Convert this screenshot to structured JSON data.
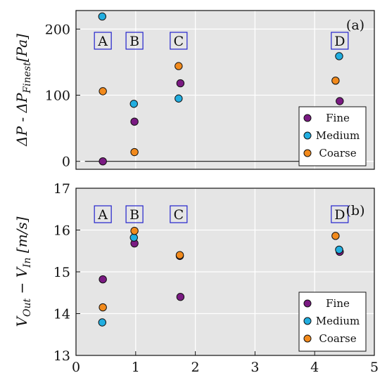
{
  "chart_data": [
    {
      "type": "scatter",
      "panel_label": "(a)",
      "ylabel": "ΔP - ΔP_Finest [Pa]",
      "ylabel_parts": {
        "main": "ΔP - ΔP",
        "sub": "Finest",
        "unit": "[Pa]"
      },
      "xlim": [
        0,
        5
      ],
      "ylim": [
        -12,
        228
      ],
      "yticks": [
        0,
        100,
        200
      ],
      "grid": true,
      "legend_position": "bottom-right",
      "reference_line": {
        "y": 0,
        "x_from": 0.15,
        "x_to": 4.85
      },
      "annotations": [
        {
          "text": "A",
          "x": 0.45
        },
        {
          "text": "B",
          "x": 0.98
        },
        {
          "text": "C",
          "x": 1.72
        },
        {
          "text": "D",
          "x": 4.42
        }
      ],
      "annotation_y": 183,
      "series": [
        {
          "name": "Fine",
          "color": "#7a1a82",
          "points": [
            [
              0.45,
              0
            ],
            [
              0.98,
              60
            ],
            [
              1.75,
              118
            ],
            [
              4.42,
              91
            ]
          ]
        },
        {
          "name": "Medium",
          "color": "#22aee0",
          "points": [
            [
              0.44,
              219
            ],
            [
              0.97,
              87
            ],
            [
              1.72,
              95
            ],
            [
              4.41,
              159
            ]
          ]
        },
        {
          "name": "Coarse",
          "color": "#f28a1c",
          "points": [
            [
              0.45,
              106
            ],
            [
              0.98,
              14
            ],
            [
              1.72,
              144
            ],
            [
              4.35,
              122
            ]
          ]
        }
      ]
    },
    {
      "type": "scatter",
      "panel_label": "(b)",
      "ylabel": "V_Out − V_In [m/s]",
      "ylabel_parts": {
        "main1": "V",
        "sub1": "Out",
        "mid": " − V",
        "sub2": "In",
        "unit": " [m/s]"
      },
      "xlim": [
        0,
        5
      ],
      "ylim": [
        13,
        17
      ],
      "xticks": [
        0,
        1,
        2,
        3,
        4,
        5
      ],
      "yticks": [
        13,
        14,
        15,
        16,
        17
      ],
      "grid": true,
      "legend_position": "bottom-right",
      "annotations": [
        {
          "text": "A",
          "x": 0.45
        },
        {
          "text": "B",
          "x": 0.98
        },
        {
          "text": "C",
          "x": 1.72
        },
        {
          "text": "D",
          "x": 4.42
        }
      ],
      "annotation_y": 16.4,
      "series": [
        {
          "name": "Fine",
          "color": "#7a1a82",
          "points": [
            [
              0.45,
              14.82
            ],
            [
              0.98,
              15.68
            ],
            [
              1.75,
              14.4
            ],
            [
              1.74,
              15.38
            ],
            [
              4.42,
              15.48
            ]
          ]
        },
        {
          "name": "Medium",
          "color": "#22aee0",
          "points": [
            [
              0.44,
              13.79
            ],
            [
              0.97,
              15.82
            ],
            [
              4.41,
              15.53
            ]
          ]
        },
        {
          "name": "Coarse",
          "color": "#f28a1c",
          "points": [
            [
              0.45,
              14.15
            ],
            [
              0.98,
              15.98
            ],
            [
              1.74,
              15.4
            ],
            [
              4.35,
              15.86
            ]
          ]
        }
      ]
    }
  ]
}
